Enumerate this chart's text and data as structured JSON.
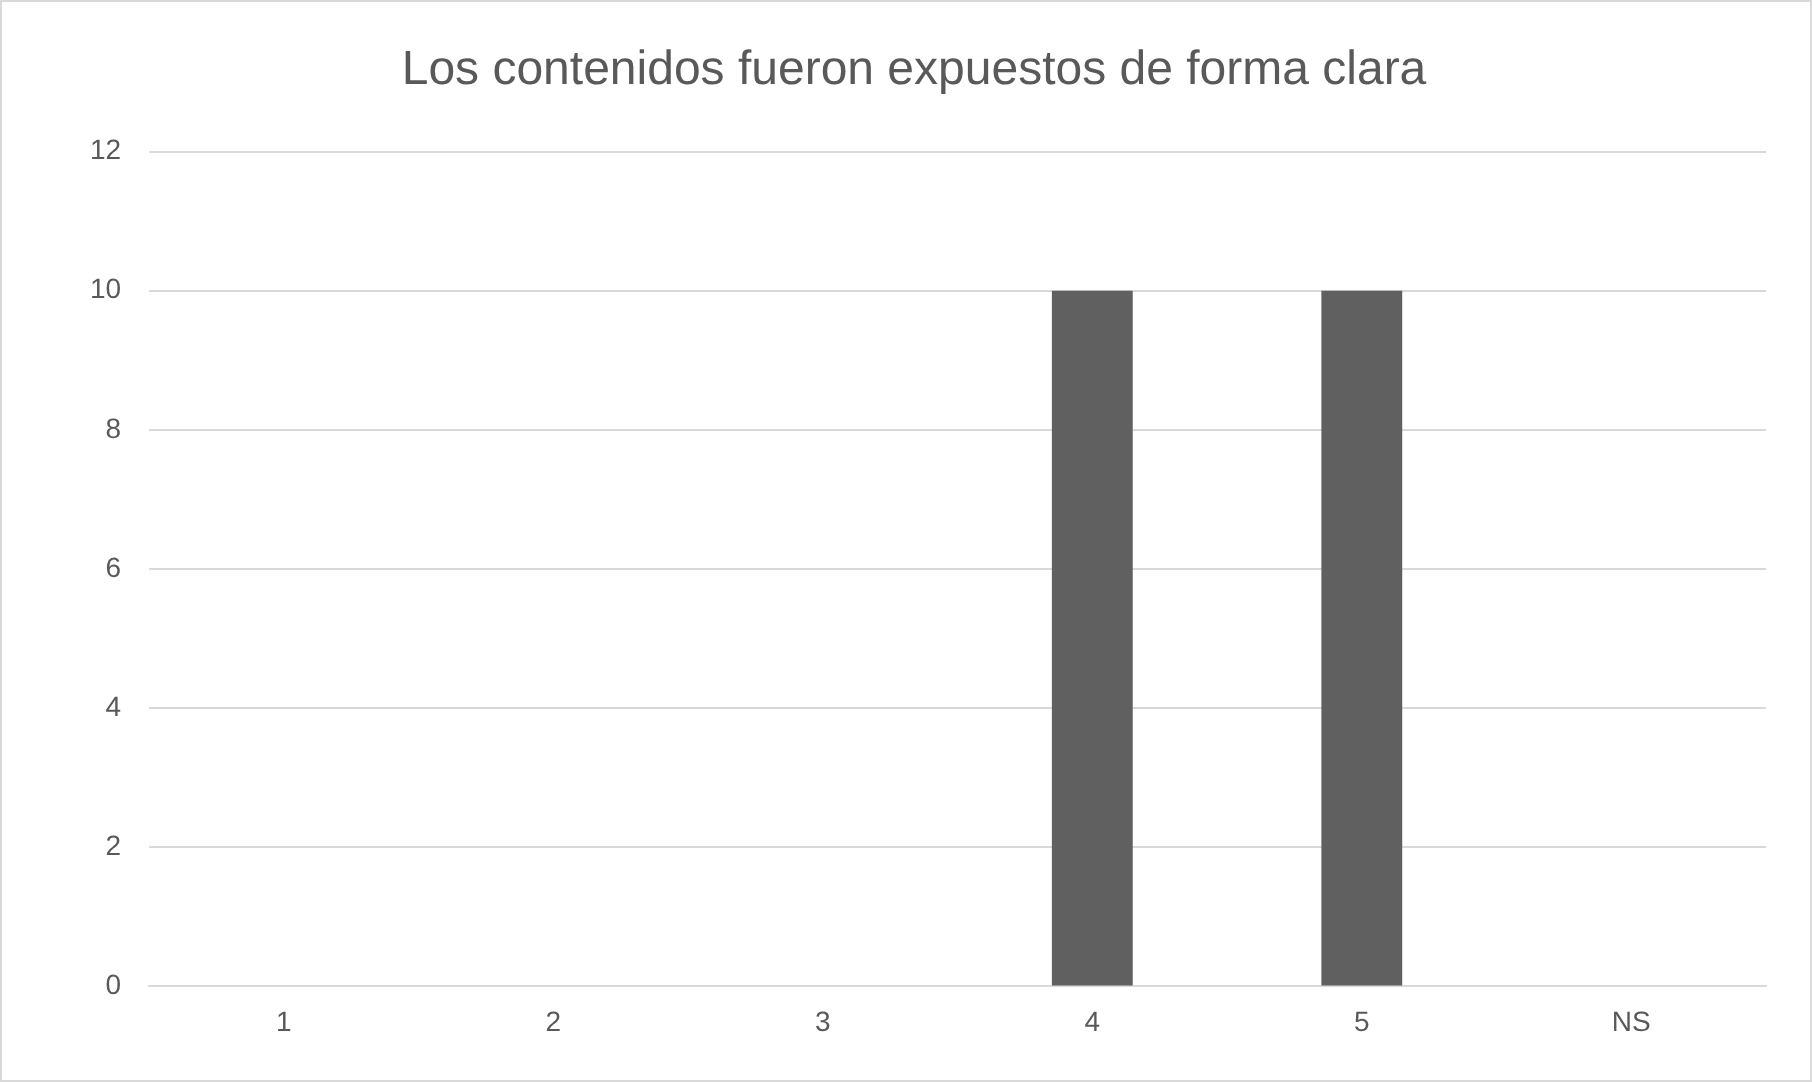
{
  "chart_data": {
    "type": "bar",
    "title": "Los contenidos fueron expuestos de forma clara",
    "categories": [
      "1",
      "2",
      "3",
      "4",
      "5",
      "NS"
    ],
    "values": [
      0,
      0,
      0,
      10,
      10,
      0
    ],
    "color": "#606060",
    "ylim": [
      0,
      12
    ],
    "yticks": [
      0,
      2,
      4,
      6,
      8,
      10,
      12
    ],
    "grid": "y",
    "legend": false
  }
}
